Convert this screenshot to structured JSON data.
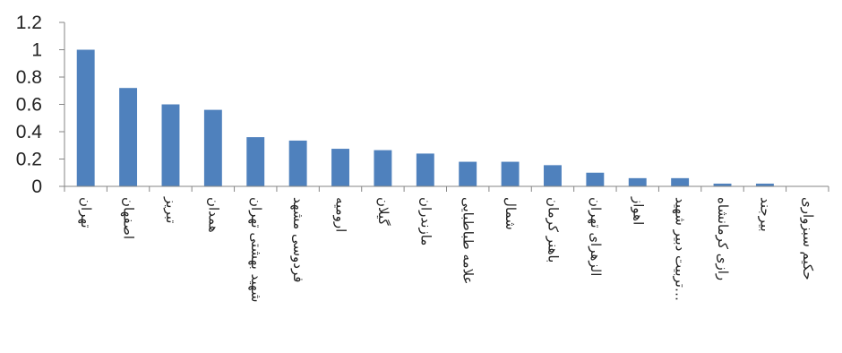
{
  "chart_data": {
    "type": "bar",
    "categories": [
      "تهران",
      "اصفهان",
      "تبریز",
      "همدان",
      "شهید بهشتی تهران",
      "فردوسی مشهد",
      "ارومیه",
      "گیلان",
      "مازندران",
      "علامه طباطبایی",
      "شمال",
      "باهنر کرمان",
      "الزهرای تهران",
      "اهواز",
      "تربیت دبیر شهید…",
      "رازی کرمانشاه",
      "بیرجند",
      "حکیم سبزواری"
    ],
    "values": [
      1.0,
      0.72,
      0.6,
      0.56,
      0.36,
      0.335,
      0.275,
      0.265,
      0.24,
      0.18,
      0.18,
      0.155,
      0.1,
      0.06,
      0.06,
      0.02,
      0.02,
      0
    ],
    "ylim": [
      0,
      1.2
    ],
    "yticks": [
      "0",
      "0.2",
      "0.4",
      "0.6",
      "0.8",
      "1",
      "1.2"
    ],
    "bar_color": "#4F81BD",
    "grid": false
  }
}
